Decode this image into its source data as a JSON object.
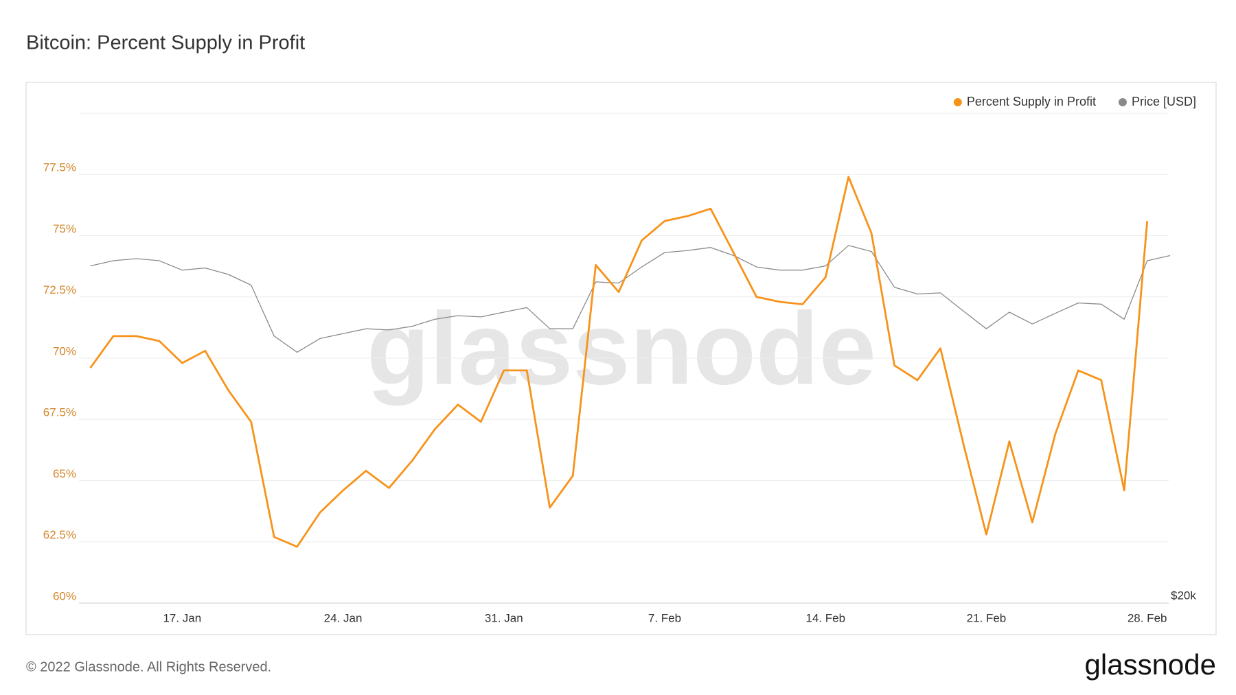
{
  "title": "Bitcoin: Percent Supply in Profit",
  "watermark": "glassnode",
  "footer": {
    "copyright": "© 2022 Glassnode. All Rights Reserved.",
    "logo": "glassnode"
  },
  "chart_data": {
    "type": "line",
    "categories": [
      null,
      null,
      null,
      null,
      "17. Jan",
      null,
      null,
      null,
      null,
      null,
      null,
      "24. Jan",
      null,
      null,
      null,
      null,
      null,
      null,
      "31. Jan",
      null,
      null,
      null,
      null,
      null,
      null,
      "7. Feb",
      null,
      null,
      null,
      null,
      null,
      null,
      "14. Feb",
      null,
      null,
      null,
      null,
      null,
      null,
      "21. Feb",
      null,
      null,
      null,
      null,
      null,
      null,
      "28. Feb",
      null
    ],
    "series": [
      {
        "name": "Percent Supply in Profit",
        "color": "#f7931a",
        "values": [
          69.6,
          70.9,
          70.9,
          70.7,
          69.8,
          70.3,
          68.7,
          67.4,
          62.7,
          62.3,
          63.7,
          64.6,
          65.4,
          64.7,
          65.8,
          67.1,
          68.1,
          67.4,
          69.5,
          69.5,
          63.9,
          65.2,
          73.8,
          72.7,
          74.8,
          75.6,
          75.8,
          76.1,
          74.3,
          72.5,
          72.3,
          72.2,
          73.3,
          77.4,
          75.1,
          69.7,
          69.1,
          70.4,
          66.5,
          62.8,
          66.6,
          63.3,
          66.9,
          69.5,
          69.1,
          64.6,
          75.6,
          null
        ]
      },
      {
        "name": "Price [USD]",
        "color": "#8a8a8a",
        "axis": "y2",
        "values": [
          42600,
          43100,
          43300,
          43100,
          42200,
          42400,
          41800,
          40800,
          36400,
          35100,
          36200,
          36600,
          37000,
          36900,
          37200,
          37800,
          38100,
          38000,
          38400,
          38800,
          37000,
          37000,
          41100,
          41000,
          42500,
          43900,
          44100,
          44400,
          43600,
          42500,
          42200,
          42200,
          42600,
          44600,
          44000,
          40600,
          40000,
          40100,
          38500,
          37000,
          38400,
          37400,
          38300,
          39200,
          39100,
          37800,
          43100,
          43600
        ]
      }
    ],
    "ylim": [
      60,
      80
    ],
    "yticks": [
      {
        "value": 60,
        "label": "60%"
      },
      {
        "value": 62.5,
        "label": "62.5%"
      },
      {
        "value": 65,
        "label": "65%"
      },
      {
        "value": 67.5,
        "label": "67.5%"
      },
      {
        "value": 70,
        "label": "70%"
      },
      {
        "value": 72.5,
        "label": "72.5%"
      },
      {
        "value": 75,
        "label": "75%"
      },
      {
        "value": 77.5,
        "label": "77.5%"
      }
    ],
    "y2lim": [
      20000,
      60000
    ],
    "y2scale": "log",
    "y2ticks": [
      {
        "value": 20000,
        "label": "$20k"
      }
    ],
    "grid": true,
    "legend": "top-right"
  }
}
